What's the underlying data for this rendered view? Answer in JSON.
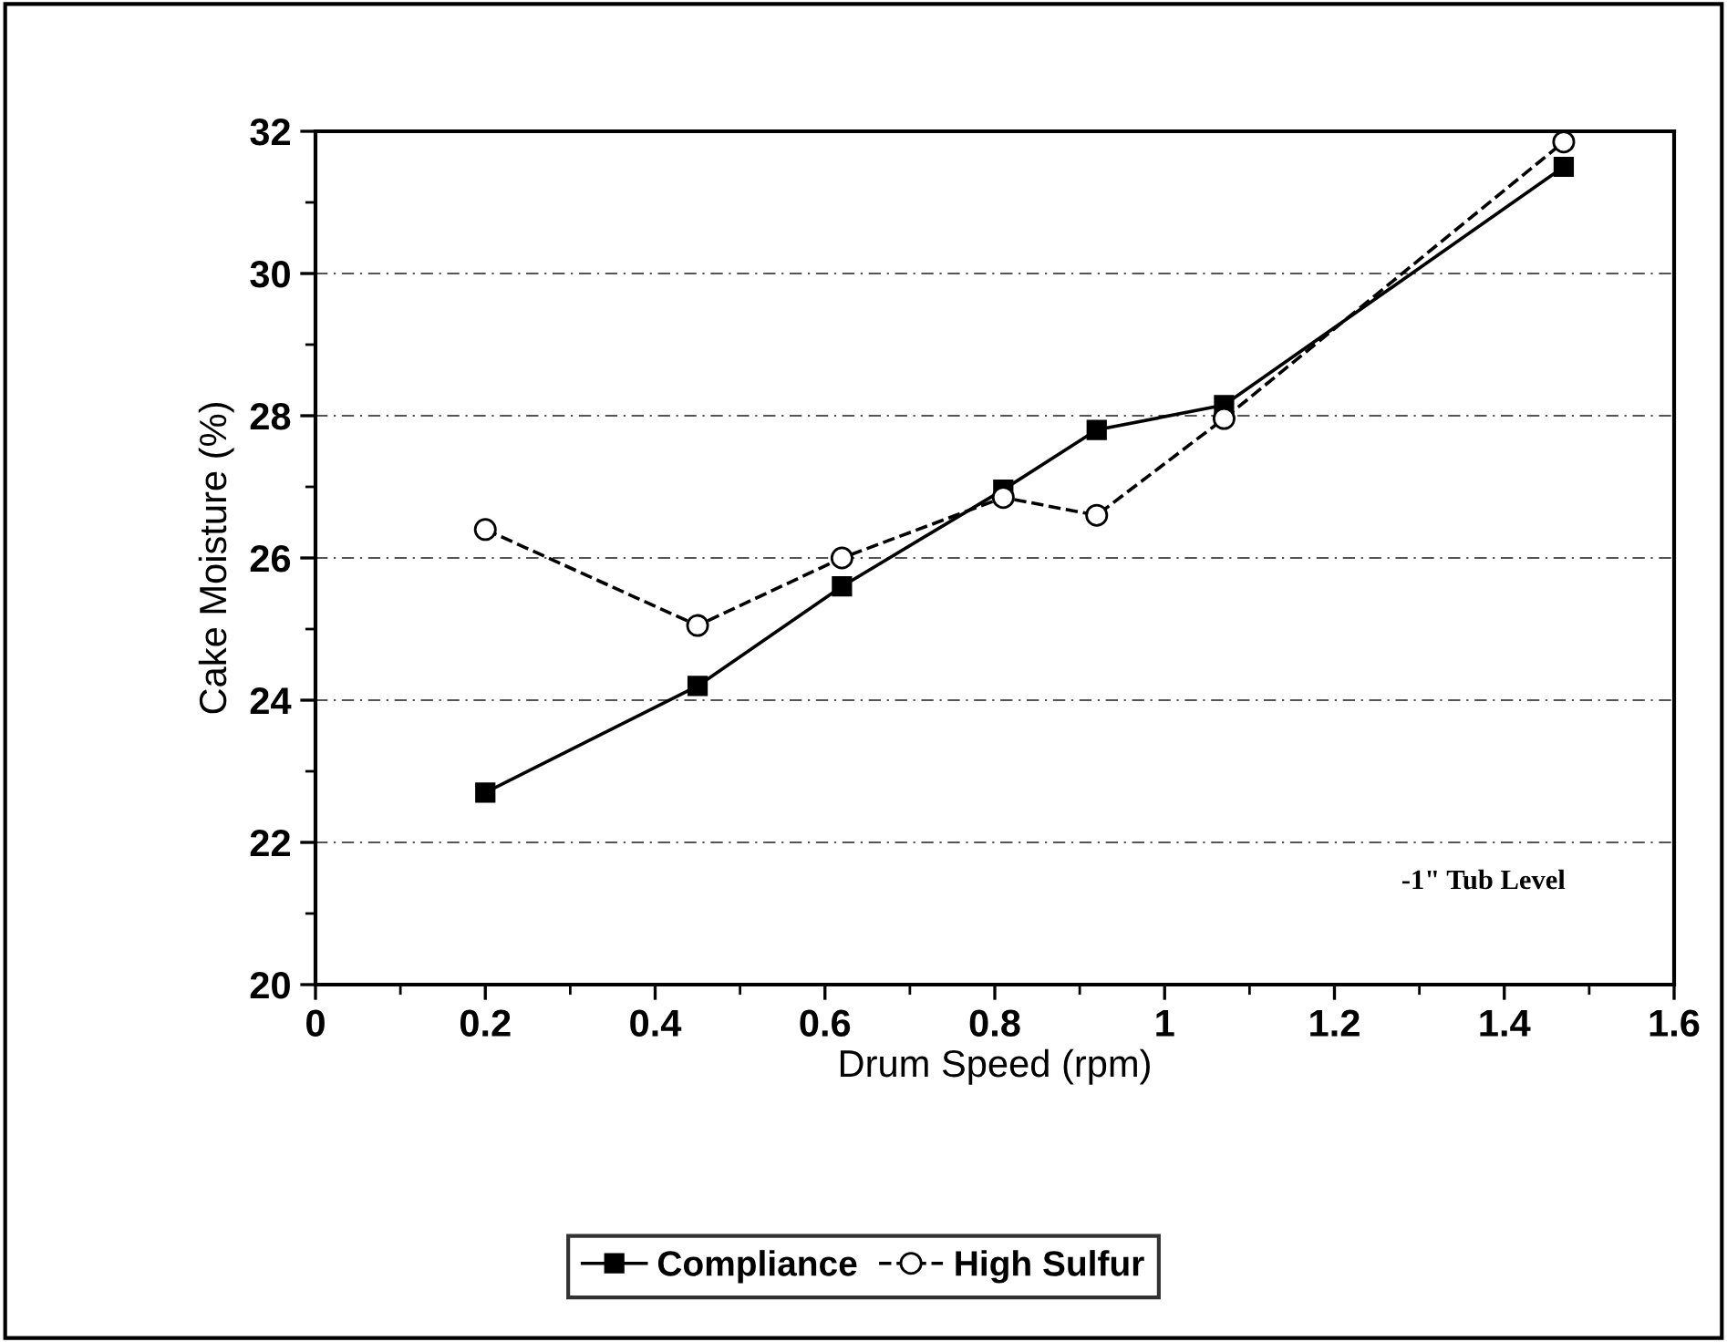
{
  "chart_data": {
    "type": "line",
    "xlabel": "Drum Speed (rpm)",
    "ylabel": "Cake Moisture (%)",
    "x": [
      0.2,
      0.45,
      0.62,
      0.81,
      0.92,
      1.07,
      1.47
    ],
    "series": [
      {
        "name": "Compliance",
        "color": "#000000",
        "marker": "square",
        "line_style": "solid",
        "values": [
          22.7,
          24.2,
          25.6,
          26.96,
          27.8,
          28.15,
          31.5
        ]
      },
      {
        "name": "High Sulfur",
        "color": "#000000",
        "marker": "circle",
        "line_style": "dashed",
        "values": [
          26.4,
          25.05,
          26.0,
          26.85,
          26.6,
          27.96,
          31.85
        ]
      }
    ],
    "xlim": [
      0,
      1.6
    ],
    "xticks": [
      0,
      0.2,
      0.4,
      0.6,
      0.8,
      1,
      1.2,
      1.4,
      1.6
    ],
    "ylim": [
      20,
      32
    ],
    "yticks": [
      20,
      22,
      24,
      26,
      28,
      30,
      32
    ],
    "grid": "y",
    "legend": "bottom",
    "annotations": [
      "-1\" Tub Level"
    ]
  }
}
